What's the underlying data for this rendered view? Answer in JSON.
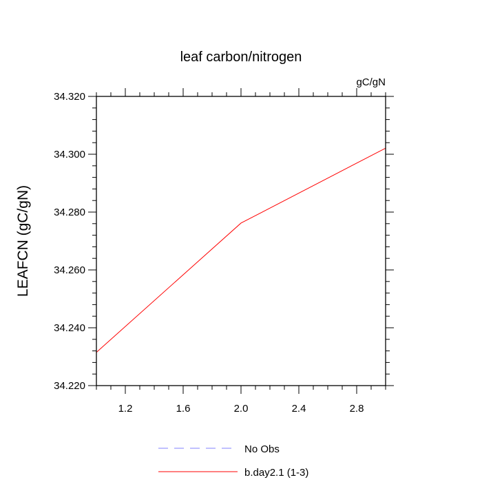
{
  "chart_data": {
    "type": "line",
    "title": "leaf carbon/nitrogen",
    "units_label": "gC/gN",
    "ylabel": "LEAFCN  (gC/gN)",
    "xlabel": "",
    "xlim": [
      1.0,
      3.0
    ],
    "ylim": [
      34.22,
      34.32
    ],
    "x_ticks": [
      1.2,
      1.6,
      2.0,
      2.4,
      2.8
    ],
    "x_tick_labels": [
      "1.2",
      "1.6",
      "2.0",
      "2.4",
      "2.8"
    ],
    "y_ticks": [
      34.22,
      34.24,
      34.26,
      34.28,
      34.3,
      34.32
    ],
    "y_tick_labels": [
      "34.220",
      "34.240",
      "34.260",
      "34.280",
      "34.300",
      "34.320"
    ],
    "grid": false,
    "legend_position": "bottom",
    "series": [
      {
        "name": "No Obs",
        "x": [],
        "y": [],
        "color": "#8080ff",
        "dash": "dashed"
      },
      {
        "name": "b.day2.1 (1-3)",
        "x": [
          1,
          2,
          3
        ],
        "y": [
          34.2315,
          34.2762,
          34.3021
        ],
        "color": "#ff0000",
        "dash": "solid"
      }
    ]
  }
}
